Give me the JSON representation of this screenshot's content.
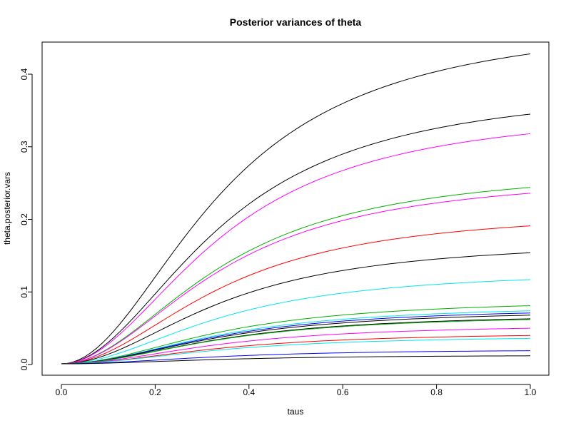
{
  "chart_data": {
    "type": "line",
    "title": "Posterior variances of theta",
    "xlabel": "taus",
    "ylabel": "theta.posterior.vars",
    "xlim": [
      0.0,
      1.0
    ],
    "ylim": [
      0.0,
      0.43
    ],
    "x_ticks": [
      "0.0",
      "0.2",
      "0.4",
      "0.6",
      "0.8",
      "1.0"
    ],
    "y_ticks": [
      "0.0",
      "0.1",
      "0.2",
      "0.3",
      "0.4"
    ],
    "grid": false,
    "legend": "none",
    "x": [
      0.0,
      1.0
    ],
    "series": [
      {
        "color": "#000000",
        "values": [
          0.001,
          0.428
        ]
      },
      {
        "color": "#000000",
        "values": [
          0.001,
          0.345
        ]
      },
      {
        "color": "#ff00ff",
        "values": [
          0.001,
          0.318
        ]
      },
      {
        "color": "#00b000",
        "values": [
          0.001,
          0.244
        ]
      },
      {
        "color": "#ff00ff",
        "values": [
          0.001,
          0.236
        ]
      },
      {
        "color": "#ff0000",
        "values": [
          0.001,
          0.191
        ]
      },
      {
        "color": "#000000",
        "values": [
          0.001,
          0.154
        ]
      },
      {
        "color": "#00e5ee",
        "values": [
          0.001,
          0.117
        ]
      },
      {
        "color": "#00b000",
        "values": [
          0.001,
          0.081
        ]
      },
      {
        "color": "#00e5ee",
        "values": [
          0.001,
          0.074
        ]
      },
      {
        "color": "#0000ff",
        "values": [
          0.001,
          0.071
        ]
      },
      {
        "color": "#000000",
        "values": [
          0.001,
          0.068
        ]
      },
      {
        "color": "#000000",
        "values": [
          0.001,
          0.063
        ]
      },
      {
        "color": "#00b000",
        "values": [
          0.001,
          0.062
        ]
      },
      {
        "color": "#ff00ff",
        "values": [
          0.001,
          0.05
        ]
      },
      {
        "color": "#ff0000",
        "values": [
          0.001,
          0.04
        ]
      },
      {
        "color": "#00e5ee",
        "values": [
          0.001,
          0.036
        ]
      },
      {
        "color": "#0000ff",
        "values": [
          0.001,
          0.019
        ]
      },
      {
        "color": "#000000",
        "values": [
          0.001,
          0.012
        ]
      }
    ]
  }
}
